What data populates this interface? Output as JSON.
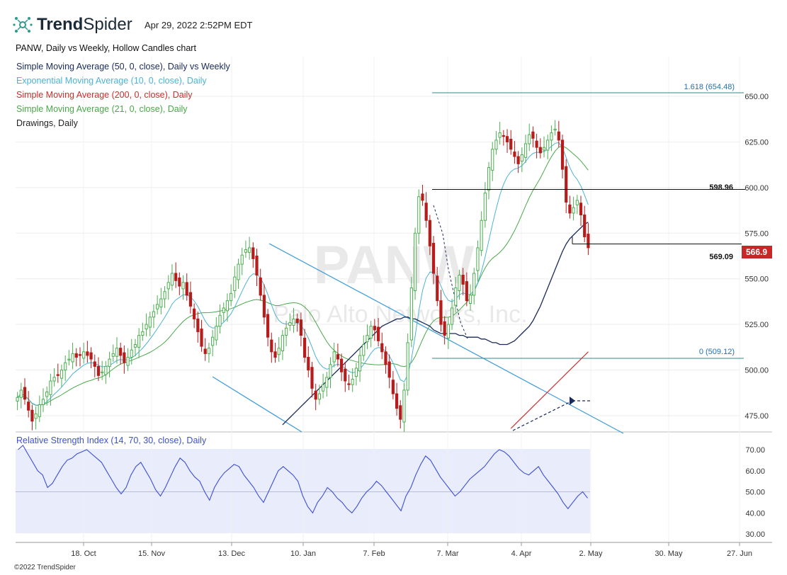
{
  "header": {
    "brand_bold": "Trend",
    "brand_light": "Spider",
    "timestamp": "Apr 29, 2022 2:52PM EDT",
    "chart_title": "PANW, Daily vs Weekly, Hollow Candles chart",
    "copyright": "©2022 TrendSpider"
  },
  "indicators": [
    {
      "label": "Simple Moving Average (50, 0, close), Daily vs Weekly",
      "color": "#1a2a5a"
    },
    {
      "label": "Exponential Moving Average (10, 0, close), Daily",
      "color": "#4bb3d6"
    },
    {
      "label": "Simple Moving Average (200, 0, close), Daily",
      "color": "#cc2e2e"
    },
    {
      "label": "Simple Moving Average (21, 0, close), Daily",
      "color": "#4aa84a"
    },
    {
      "label": "Drawings, Daily",
      "color": "#222222"
    }
  ],
  "watermark": {
    "symbol": "PANW",
    "company": "Palo Alto Networks, Inc."
  },
  "annotations": {
    "fib_top": "1.618 (654.48)",
    "fib_bottom": "0 (509.12)",
    "level_high": "598.96",
    "level_low": "569.09",
    "last_price": "566.9"
  },
  "rsi": {
    "label": "Relative Strength Index (14, 70, 30, close), Daily",
    "ticks": [
      "70.00",
      "60.00",
      "50.00",
      "40.00",
      "30.00"
    ]
  },
  "colors": {
    "up": "#4caf50",
    "down": "#b71c1c",
    "price_badge": "#c62828",
    "rsi": "#3d4fd6",
    "rsi_band": "#e8ecfb"
  },
  "chart_data": {
    "type": "candlestick",
    "title": "PANW, Daily vs Weekly, Hollow Candles chart",
    "y_ticks": [
      650,
      625,
      600,
      575,
      550,
      525,
      500,
      475
    ],
    "ylim": [
      467,
      666
    ],
    "x_ticks": [
      "18. Oct",
      "15. Nov",
      "13. Dec",
      "10. Jan",
      "7. Feb",
      "7. Mar",
      "4. Apr",
      "2. May",
      "30. May",
      "27. Jun"
    ],
    "close": [
      485,
      489,
      484,
      478,
      472,
      476,
      481,
      484,
      488,
      494,
      496,
      497,
      500,
      504,
      506,
      509,
      507,
      508,
      510,
      508,
      506,
      502,
      497,
      499,
      502,
      506,
      509,
      512,
      508,
      504,
      507,
      511,
      514,
      519,
      521,
      525,
      529,
      532,
      536,
      539,
      543,
      548,
      553,
      549,
      546,
      548,
      541,
      535,
      528,
      521,
      513,
      509,
      512,
      518,
      524,
      530,
      534,
      538,
      542,
      551,
      558,
      563,
      566,
      567,
      561,
      552,
      541,
      529,
      518,
      510,
      507,
      512,
      519,
      523,
      526,
      528,
      526,
      519,
      507,
      500,
      490,
      484,
      487,
      492,
      496,
      503,
      510,
      506,
      499,
      494,
      492,
      495,
      501,
      508,
      514,
      519,
      524,
      522,
      516,
      510,
      503,
      496,
      487,
      479,
      473,
      489,
      515,
      545,
      575,
      595,
      593,
      582,
      568,
      553,
      538,
      525,
      519,
      525,
      534,
      545,
      552,
      547,
      538,
      541,
      553,
      567,
      582,
      597,
      611,
      621,
      626,
      630,
      628,
      625,
      621,
      617,
      613,
      618,
      624,
      629,
      627,
      622,
      619,
      622,
      626,
      630,
      632,
      626,
      610,
      592,
      586,
      589,
      593,
      585,
      573,
      567
    ],
    "sma50": [
      470,
      472,
      474,
      476,
      478,
      480,
      482,
      484,
      486,
      488,
      490,
      492,
      494,
      496,
      498,
      500,
      502,
      504,
      506,
      508,
      510,
      512,
      514,
      516,
      518,
      520,
      522,
      524,
      525,
      526,
      527,
      528,
      528,
      529,
      529,
      528,
      528,
      527,
      526,
      525,
      524,
      522,
      521,
      520,
      520,
      520,
      520,
      520,
      519,
      519,
      518,
      518,
      518,
      518,
      517,
      517,
      516,
      515,
      515,
      514,
      514,
      514,
      515,
      516,
      518,
      520,
      522,
      524,
      527,
      531,
      535,
      540,
      545,
      550,
      555,
      560,
      565,
      569,
      572,
      574,
      576,
      578,
      580,
      581
    ],
    "sma200": [
      468,
      470,
      472,
      474,
      476,
      478,
      480,
      482,
      484,
      486,
      488,
      490,
      492,
      494,
      496,
      498,
      500,
      502,
      504,
      506,
      508,
      510
    ],
    "fib": {
      "level_1_618": 654.48,
      "level_0": 509.12
    },
    "levels": {
      "high": 598.96,
      "low": 569.09
    },
    "last_price": 566.9,
    "rsi_values": [
      70,
      72,
      68,
      64,
      60,
      58,
      52,
      54,
      58,
      62,
      65,
      66,
      68,
      69,
      70,
      68,
      66,
      64,
      60,
      56,
      52,
      49,
      52,
      58,
      62,
      64,
      60,
      56,
      51,
      48,
      52,
      57,
      62,
      66,
      64,
      60,
      57,
      55,
      50,
      46,
      52,
      56,
      59,
      61,
      63,
      62,
      58,
      55,
      52,
      48,
      45,
      50,
      55,
      60,
      62,
      60,
      58,
      55,
      48,
      43,
      40,
      45,
      48,
      52,
      50,
      47,
      45,
      42,
      40,
      43,
      47,
      50,
      52,
      55,
      53,
      50,
      47,
      44,
      41,
      48,
      52,
      58,
      63,
      67,
      65,
      61,
      57,
      54,
      51,
      48,
      50,
      53,
      56,
      58,
      60,
      62,
      65,
      68,
      70,
      69,
      67,
      64,
      61,
      59,
      58,
      60,
      62,
      58,
      55,
      52,
      49,
      45,
      42,
      45,
      48,
      50,
      47
    ],
    "rsi_ylim": [
      27,
      73
    ]
  }
}
